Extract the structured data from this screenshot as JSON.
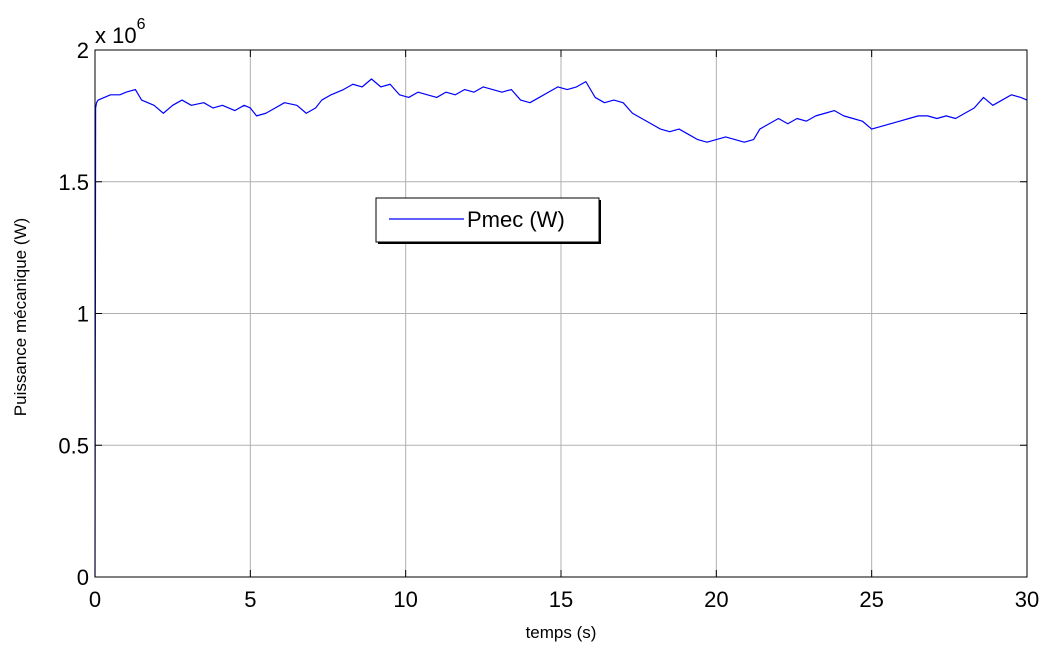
{
  "chart_data": {
    "type": "line",
    "title": "",
    "xlabel": "temps (s)",
    "ylabel": "Puissance mécanique (W)",
    "xlim": [
      0,
      30
    ],
    "ylim": [
      0,
      2000000
    ],
    "y_exponent_base": "x 10",
    "y_exponent_power": "6",
    "grid": true,
    "legend_position": "center-upper",
    "x_ticks": [
      0,
      5,
      10,
      15,
      20,
      25,
      30
    ],
    "x_tick_labels": [
      "0",
      "5",
      "10",
      "15",
      "20",
      "25",
      "30"
    ],
    "y_ticks": [
      0,
      500000,
      1000000,
      1500000,
      2000000
    ],
    "y_tick_labels": [
      "0",
      "0.5",
      "1",
      "1.5",
      "2"
    ],
    "series": [
      {
        "name": "Pmec (W)",
        "color": "#0000ff",
        "x": [
          0,
          0.02,
          0.05,
          0.1,
          0.3,
          0.5,
          0.8,
          1.0,
          1.3,
          1.5,
          1.7,
          1.9,
          2.2,
          2.5,
          2.8,
          3.1,
          3.5,
          3.8,
          4.1,
          4.5,
          4.8,
          5.0,
          5.2,
          5.5,
          5.8,
          6.1,
          6.5,
          6.8,
          7.1,
          7.3,
          7.6,
          8.0,
          8.3,
          8.6,
          8.9,
          9.2,
          9.5,
          9.8,
          10.1,
          10.4,
          10.7,
          11.0,
          11.3,
          11.6,
          11.9,
          12.2,
          12.5,
          12.8,
          13.1,
          13.4,
          13.7,
          14.0,
          14.3,
          14.6,
          14.9,
          15.2,
          15.5,
          15.8,
          16.1,
          16.4,
          16.7,
          17.0,
          17.3,
          17.6,
          17.9,
          18.2,
          18.5,
          18.8,
          19.1,
          19.4,
          19.7,
          20.0,
          20.3,
          20.6,
          20.9,
          21.2,
          21.4,
          21.7,
          22.0,
          22.3,
          22.6,
          22.9,
          23.2,
          23.5,
          23.8,
          24.1,
          24.4,
          24.7,
          25.0,
          25.3,
          25.6,
          25.9,
          26.2,
          26.5,
          26.8,
          27.1,
          27.4,
          27.7,
          28.0,
          28.3,
          28.6,
          28.9,
          29.2,
          29.5,
          29.8,
          30.0
        ],
        "values": [
          0,
          1780000,
          1800000,
          1810000,
          1820000,
          1830000,
          1830000,
          1840000,
          1850000,
          1810000,
          1800000,
          1790000,
          1760000,
          1790000,
          1810000,
          1790000,
          1800000,
          1780000,
          1790000,
          1770000,
          1790000,
          1780000,
          1750000,
          1760000,
          1780000,
          1800000,
          1790000,
          1760000,
          1780000,
          1810000,
          1830000,
          1850000,
          1870000,
          1860000,
          1890000,
          1860000,
          1870000,
          1830000,
          1820000,
          1840000,
          1830000,
          1820000,
          1840000,
          1830000,
          1850000,
          1840000,
          1860000,
          1850000,
          1840000,
          1850000,
          1810000,
          1800000,
          1820000,
          1840000,
          1860000,
          1850000,
          1860000,
          1880000,
          1820000,
          1800000,
          1810000,
          1800000,
          1760000,
          1740000,
          1720000,
          1700000,
          1690000,
          1700000,
          1680000,
          1660000,
          1650000,
          1660000,
          1670000,
          1660000,
          1650000,
          1660000,
          1700000,
          1720000,
          1740000,
          1720000,
          1740000,
          1730000,
          1750000,
          1760000,
          1770000,
          1750000,
          1740000,
          1730000,
          1700000,
          1710000,
          1720000,
          1730000,
          1740000,
          1750000,
          1750000,
          1740000,
          1750000,
          1740000,
          1760000,
          1780000,
          1820000,
          1790000,
          1810000,
          1830000,
          1820000,
          1810000
        ]
      }
    ]
  }
}
